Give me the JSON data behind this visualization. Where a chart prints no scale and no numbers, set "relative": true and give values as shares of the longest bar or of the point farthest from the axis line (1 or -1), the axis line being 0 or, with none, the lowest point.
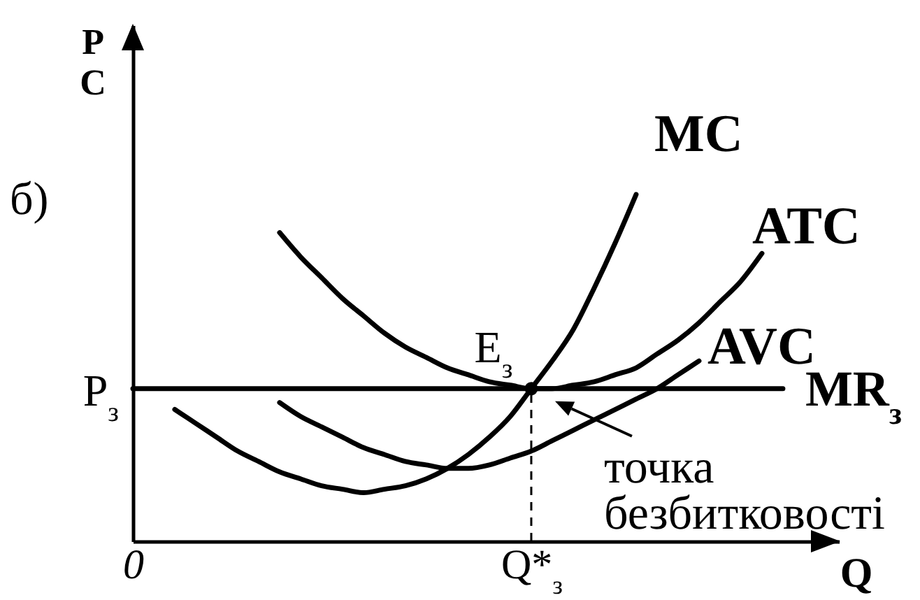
{
  "chart_data": {
    "type": "line",
    "title": "б)",
    "xlabel": "Q",
    "ylabel": "P C",
    "relative": true,
    "categories": [
      "0",
      null,
      null,
      null,
      null,
      null,
      null,
      null,
      null,
      null,
      null,
      null,
      null,
      null,
      null,
      null,
      null,
      null,
      null,
      "Q*$_{з}$",
      null,
      null,
      null,
      null,
      null,
      null,
      null,
      null,
      null,
      null,
      null,
      null,
      null,
      null
    ],
    "series": [
      {
        "name": "MC",
        "color": "#000000",
        "values": [
          null,
          null,
          0.38,
          0.34,
          0.3,
          0.26,
          0.23,
          0.2,
          0.18,
          0.16,
          0.15,
          0.14,
          0.15,
          0.16,
          0.18,
          0.21,
          0.25,
          0.3,
          0.36,
          0.44,
          0.52,
          0.61,
          0.73,
          0.86,
          1.0,
          null,
          null,
          null,
          null,
          null,
          null,
          null,
          null,
          null
        ]
      },
      {
        "name": "ATC",
        "color": "#000000",
        "values": [
          null,
          null,
          null,
          null,
          null,
          null,
          null,
          0.89,
          0.82,
          0.76,
          0.7,
          0.65,
          0.6,
          0.56,
          0.53,
          0.5,
          0.48,
          0.46,
          0.45,
          0.44,
          0.44,
          0.45,
          0.46,
          0.48,
          0.5,
          0.54,
          0.58,
          0.63,
          0.69,
          0.75,
          0.83,
          null,
          null,
          null
        ]
      },
      {
        "name": "AVC",
        "color": "#000000",
        "values": [
          null,
          null,
          null,
          null,
          null,
          null,
          null,
          0.4,
          0.36,
          0.33,
          0.3,
          0.27,
          0.25,
          0.23,
          0.22,
          0.21,
          0.21,
          0.22,
          0.24,
          0.26,
          0.29,
          0.32,
          0.35,
          0.38,
          0.41,
          0.44,
          0.48,
          0.52,
          null,
          null,
          null,
          null,
          null,
          null
        ]
      },
      {
        "name": "MR$_{з}$",
        "color": "#000000",
        "values": [
          0.44,
          0.44,
          0.44,
          0.44,
          0.44,
          0.44,
          0.44,
          0.44,
          0.44,
          0.44,
          0.44,
          0.44,
          0.44,
          0.44,
          0.44,
          0.44,
          0.44,
          0.44,
          0.44,
          0.44,
          0.44,
          0.44,
          0.44,
          0.44,
          0.44,
          0.44,
          0.44,
          0.44,
          0.44,
          0.44,
          0.44,
          0.44,
          null,
          null
        ]
      },
      {
        "name": "E$_{з}$",
        "type": "lollipop",
        "color": "#000000",
        "line_style": "dashed",
        "marker": "circle",
        "values": [
          null,
          null,
          null,
          null,
          null,
          null,
          null,
          null,
          null,
          null,
          null,
          null,
          null,
          null,
          null,
          null,
          null,
          null,
          null,
          0.44,
          null,
          null,
          null,
          null,
          null,
          null,
          null,
          null,
          null,
          null,
          null,
          null,
          null,
          null
        ]
      }
    ],
    "annotations": [
      "P$_{з}$",
      {
        "text": "точка безбитковості",
        "x": "Q*$_{з}$",
        "y": 0.44
      }
    ]
  }
}
